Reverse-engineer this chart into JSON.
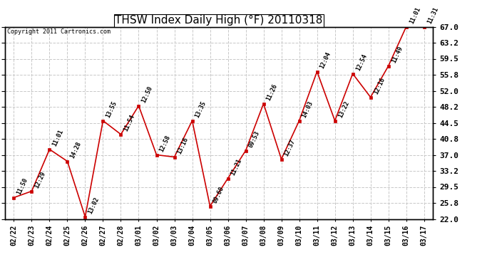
{
  "title": "THSW Index Daily High (°F) 20110318",
  "copyright": "Copyright 2011 Cartronics.com",
  "dates": [
    "02/22",
    "02/23",
    "02/24",
    "02/25",
    "02/26",
    "02/27",
    "02/28",
    "03/01",
    "03/02",
    "03/03",
    "03/04",
    "03/05",
    "03/06",
    "03/07",
    "03/08",
    "03/09",
    "03/10",
    "03/11",
    "03/12",
    "03/13",
    "03/14",
    "03/15",
    "03/16",
    "03/17"
  ],
  "values": [
    27.0,
    28.5,
    38.3,
    35.5,
    22.5,
    45.0,
    41.8,
    48.5,
    37.0,
    36.5,
    45.0,
    25.0,
    31.5,
    38.0,
    49.0,
    36.0,
    45.0,
    56.5,
    45.0,
    56.0,
    50.5,
    57.8,
    67.0,
    67.0
  ],
  "time_labels": [
    "11:50",
    "12:29",
    "11:01",
    "14:28",
    "13:02",
    "13:55",
    "11:54",
    "12:50",
    "12:58",
    "13:16",
    "13:35",
    "09:60",
    "11:21",
    "09:53",
    "11:26",
    "12:37",
    "14:03",
    "12:04",
    "13:22",
    "12:54",
    "12:16",
    "11:49",
    "11:01",
    "11:31"
  ],
  "line_color": "#cc0000",
  "marker_color": "#cc0000",
  "background_color": "#ffffff",
  "grid_color": "#c8c8c8",
  "ylim_min": 22.0,
  "ylim_max": 67.0,
  "yticks": [
    22.0,
    25.8,
    29.5,
    33.2,
    37.0,
    40.8,
    44.5,
    48.2,
    52.0,
    55.8,
    59.5,
    63.2,
    67.0
  ],
  "title_fontsize": 11,
  "xlabel_fontsize": 7,
  "ylabel_fontsize": 8,
  "annotation_fontsize": 6,
  "copyright_fontsize": 6
}
